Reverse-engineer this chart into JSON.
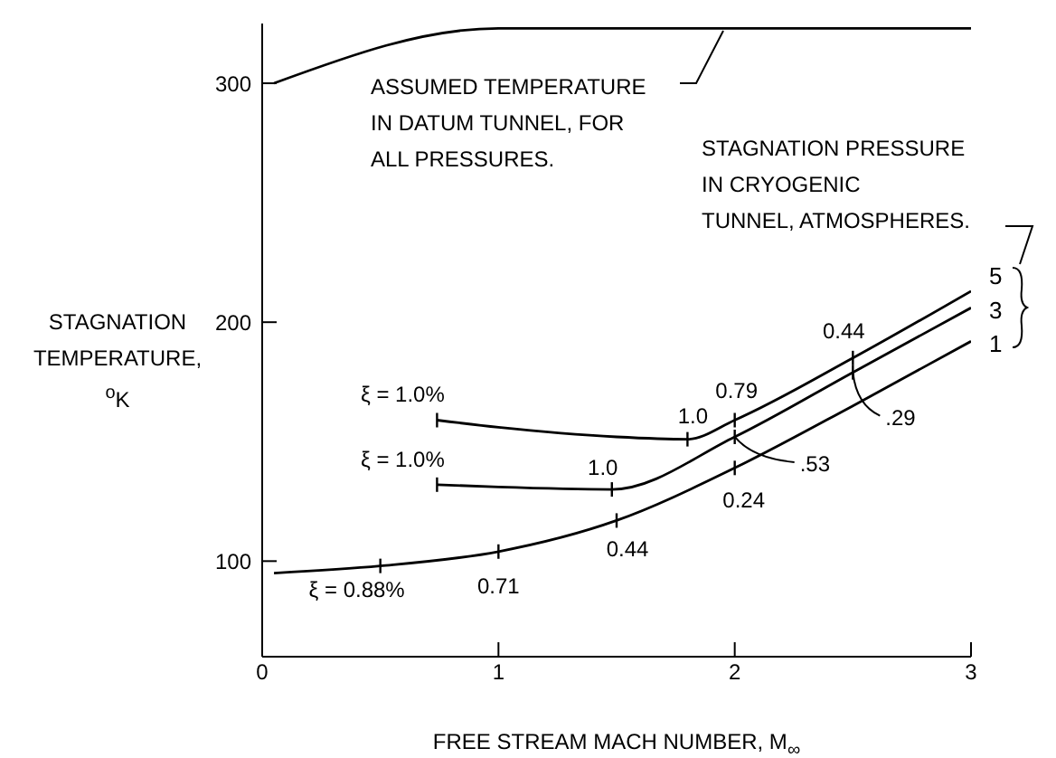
{
  "chart_data": {
    "type": "line",
    "xlabel": "FREE STREAM MACH NUMBER, M$_{∞}$",
    "ylabel": "STAGNATION\nTEMPERATURE,\n$^{o}$K",
    "xlim": [
      0,
      3
    ],
    "xticks": [
      0,
      1,
      2,
      3
    ],
    "ylim": [
      60,
      325
    ],
    "yticks": [
      100,
      200,
      300
    ],
    "marker": "none",
    "line_style": "solid",
    "series": [
      {
        "color": "#000000",
        "x": [
          0.05,
          1.0,
          3.0
        ],
        "values": [
          300,
          323,
          323
        ]
      },
      {
        "name": "5",
        "color": "#000000",
        "x": [
          0.74,
          1.0,
          1.5,
          1.8,
          2.0,
          2.5,
          3.0
        ],
        "values": [
          159,
          156,
          152,
          151,
          159,
          185,
          213
        ]
      },
      {
        "name": "3",
        "color": "#000000",
        "x": [
          0.74,
          1.0,
          1.48,
          2.0,
          2.5,
          3.0
        ],
        "values": [
          132,
          131,
          130,
          152,
          179,
          206
        ]
      },
      {
        "name": "1",
        "color": "#000000",
        "x": [
          0.05,
          0.5,
          1.0,
          1.5,
          2.0,
          2.5,
          3.0
        ],
        "values": [
          95,
          98,
          104,
          117,
          139,
          165,
          192
        ]
      }
    ],
    "annotations": [
      "ASSUMED TEMPERATURE\nIN DATUM TUNNEL, FOR\nALL PRESSURES.",
      "STAGNATION PRESSURE\nIN CRYOGENIC\nTUNNEL, ATMOSPHERES.",
      {
        "text": "ξ = 1.0%",
        "x": 0.74,
        "y": 159
      },
      {
        "text": "ξ = 1.0%",
        "x": 0.74,
        "y": 132
      },
      {
        "text": "ξ = 0.88%",
        "x": 0.5,
        "y": 98
      },
      {
        "text": "0.71",
        "x": 1,
        "y": 104
      },
      {
        "text": "0.44",
        "x": 1.5,
        "y": 117
      },
      {
        "text": "0.24",
        "x": 2,
        "y": 139
      },
      {
        "text": "1.0",
        "x": 1.48,
        "y": 130
      },
      {
        "text": ".53",
        "x": 2,
        "y": 152
      },
      {
        "text": ".29",
        "x": 2.5,
        "y": 179
      },
      {
        "text": "1.0",
        "x": 1.8,
        "y": 151
      },
      {
        "text": "0.79",
        "x": 2,
        "y": 159
      },
      {
        "text": "0.44",
        "x": 2.5,
        "y": 185
      }
    ]
  }
}
